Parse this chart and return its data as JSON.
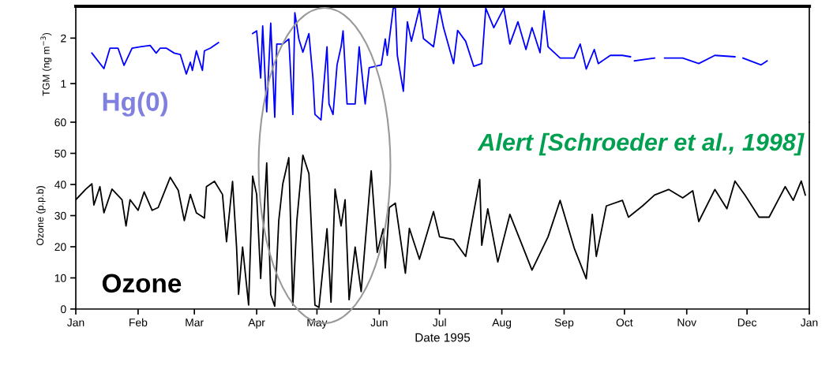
{
  "chart_data": [
    {
      "type": "line",
      "ylabel": "TGM (ng m$^{−3}$)",
      "xlim": [
        "1995-01-01",
        "1996-01-01"
      ],
      "ylim": [
        0.15,
        2.7
      ],
      "yticks": [
        1,
        2
      ],
      "tick_labels": "y",
      "series": [
        {
          "name": "Hg(0)",
          "color": "#0000ff",
          "x": [
            "1995-01-09",
            "1995-01-15",
            "1995-01-18",
            "1995-01-22",
            "1995-01-25",
            "1995-01-29",
            "1995-02-02",
            "1995-02-07",
            "1995-02-10",
            "1995-02-12",
            "1995-02-15",
            "1995-02-19",
            "1995-02-22",
            "1995-02-25",
            "1995-02-27",
            "1995-02-28",
            "1995-03-02",
            "1995-03-05",
            "1995-03-06",
            "1995-03-09",
            "1995-03-13",
            "1995-03-22",
            "1995-03-30",
            "1995-04-01",
            "1995-04-03",
            "1995-04-04",
            "1995-04-06",
            "1995-04-08",
            "1995-04-10",
            "1995-04-11",
            "1995-04-14",
            "1995-04-17",
            "1995-04-19",
            "1995-04-20",
            "1995-04-22",
            "1995-04-24",
            "1995-04-27",
            "1995-04-29",
            "1995-04-30",
            "1995-05-03",
            "1995-05-06",
            "1995-05-07",
            "1995-05-09",
            "1995-05-11",
            "1995-05-13",
            "1995-05-14",
            "1995-05-16",
            "1995-05-20",
            "1995-05-22",
            "1995-05-25",
            "1995-05-27",
            "1995-06-02",
            "1995-06-04",
            "1995-06-05",
            "1995-06-08",
            "1995-06-09",
            "1995-06-10",
            "1995-06-13",
            "1995-06-15",
            "1995-06-17",
            "1995-06-21",
            "1995-06-23",
            "1995-06-28",
            "1995-07-01",
            "1995-07-03",
            "1995-07-08",
            "1995-07-10",
            "1995-07-14",
            "1995-07-18",
            "1995-07-22",
            "1995-07-24",
            "1995-07-28",
            "1995-08-02",
            "1995-08-05",
            "1995-08-09",
            "1995-08-13",
            "1995-08-16",
            "1995-08-20",
            "1995-08-22",
            "1995-08-24",
            "1995-08-30",
            "1995-09-06",
            "1995-09-09",
            "1995-09-12",
            "1995-09-16",
            "1995-09-18",
            "1995-09-24",
            "1995-09-30",
            "1995-10-04",
            "1995-10-05",
            "1995-10-06",
            "1995-10-16",
            "1995-10-18",
            "1995-10-21",
            "1995-10-30",
            "1995-11-07",
            "1995-11-15",
            "1995-11-25",
            "1995-11-27",
            "1995-11-29",
            "1995-12-08",
            "1995-12-11"
          ],
          "values": [
            1.67,
            1.33,
            1.78,
            1.78,
            1.4,
            1.78,
            1.81,
            1.84,
            1.67,
            1.78,
            1.78,
            1.67,
            1.64,
            1.21,
            1.47,
            1.29,
            1.72,
            1.29,
            1.72,
            1.78,
            1.9,
            null,
            2.1,
            2.16,
            1.12,
            2.27,
            0.38,
            2.33,
            0.26,
            1.87,
            1.87,
            1.98,
            0.32,
            2.56,
            1.98,
            1.69,
            2.1,
            1.12,
            0.32,
            0.2,
            1.81,
            0.55,
            0.32,
            1.41,
            1.81,
            2.16,
            0.55,
            0.55,
            1.81,
            0.55,
            1.35,
            1.41,
            1.98,
            1.62,
            2.67,
            2.66,
            1.62,
            0.83,
            2.36,
            1.93,
            2.66,
            1.99,
            1.81,
            2.66,
            2.23,
            1.44,
            2.17,
            1.93,
            1.38,
            1.44,
            2.66,
            2.23,
            2.66,
            1.87,
            2.36,
            1.75,
            2.23,
            1.68,
            2.6,
            1.81,
            1.56,
            1.56,
            1.87,
            1.32,
            1.75,
            1.44,
            1.62,
            1.62,
            1.59,
            null,
            1.5,
            1.56,
            null,
            1.56,
            1.56,
            1.44,
            1.62,
            1.59,
            null,
            1.56,
            1.41,
            1.5
          ]
        }
      ]
    },
    {
      "type": "line",
      "xlabel": "Date 1995",
      "ylabel": "Ozone (p.p.b)",
      "xlim": [
        "1995-01-01",
        "1996-01-01"
      ],
      "ylim": [
        0,
        60
      ],
      "yticks": [
        0,
        10,
        20,
        30,
        40,
        50,
        60
      ],
      "xticks": [
        {
          "value": "1995-01-01",
          "label": "Jan"
        },
        {
          "value": "1995-02-01",
          "label": "Feb"
        },
        {
          "value": "1995-03-01",
          "label": "Mar"
        },
        {
          "value": "1995-04-01",
          "label": "Apr"
        },
        {
          "value": "1995-05-01",
          "label": "May"
        },
        {
          "value": "1995-06-01",
          "label": "Jun"
        },
        {
          "value": "1995-07-01",
          "label": "Jul"
        },
        {
          "value": "1995-08-01",
          "label": "Aug"
        },
        {
          "value": "1995-09-01",
          "label": "Sep"
        },
        {
          "value": "1995-10-01",
          "label": "Oct"
        },
        {
          "value": "1995-11-01",
          "label": "Nov"
        },
        {
          "value": "1995-12-01",
          "label": "Dec"
        },
        {
          "value": "1996-01-01",
          "label": "Jan"
        }
      ],
      "annotations": [
        "Alert [Schroeder et al., 1998]"
      ],
      "series": [
        {
          "name": "Ozone",
          "color": "#000000",
          "x": [
            "1995-01-01",
            "1995-01-06",
            "1995-01-09",
            "1995-01-10",
            "1995-01-13",
            "1995-01-15",
            "1995-01-19",
            "1995-01-24",
            "1995-01-26",
            "1995-01-28",
            "1995-02-01",
            "1995-02-04",
            "1995-02-08",
            "1995-02-11",
            "1995-02-17",
            "1995-02-21",
            "1995-02-24",
            "1995-02-27",
            "1995-03-02",
            "1995-03-06",
            "1995-03-07",
            "1995-03-11",
            "1995-03-15",
            "1995-03-17",
            "1995-03-20",
            "1995-03-22",
            "1995-03-23",
            "1995-03-25",
            "1995-03-28",
            "1995-03-30",
            "1995-04-01",
            "1995-04-03",
            "1995-04-06",
            "1995-04-08",
            "1995-04-10",
            "1995-04-12",
            "1995-04-14",
            "1995-04-17",
            "1995-04-19",
            "1995-04-21",
            "1995-04-24",
            "1995-04-27",
            "1995-04-30",
            "1995-05-02",
            "1995-05-06",
            "1995-05-08",
            "1995-05-10",
            "1995-05-13",
            "1995-05-15",
            "1995-05-17",
            "1995-05-20",
            "1995-05-23",
            "1995-05-28",
            "1995-05-31",
            "1995-06-03",
            "1995-06-04",
            "1995-06-06",
            "1995-06-09",
            "1995-06-14",
            "1995-06-16",
            "1995-06-21",
            "1995-06-28",
            "1995-07-01",
            "1995-07-08",
            "1995-07-14",
            "1995-07-21",
            "1995-07-22",
            "1995-07-25",
            "1995-07-30",
            "1995-08-05",
            "1995-08-10",
            "1995-08-16",
            "1995-08-24",
            "1995-08-30",
            "1995-09-06",
            "1995-09-12",
            "1995-09-15",
            "1995-09-17",
            "1995-09-22",
            "1995-09-30",
            "1995-10-03",
            "1995-10-10",
            "1995-10-16",
            "1995-10-23",
            "1995-10-30",
            "1995-11-04",
            "1995-11-07",
            "1995-11-15",
            "1995-11-21",
            "1995-11-25",
            "1995-11-30",
            "1995-12-07",
            "1995-12-12",
            "1995-12-20",
            "1995-12-24",
            "1995-12-28",
            "1995-12-30"
          ],
          "values": [
            35.1,
            38.5,
            40.2,
            33.4,
            39.3,
            30.9,
            38.5,
            35.1,
            26.7,
            35.1,
            31.7,
            37.6,
            31.7,
            32.6,
            42.3,
            38.1,
            28.4,
            36.8,
            30.9,
            29.2,
            39.3,
            41.0,
            36.8,
            21.6,
            41.0,
            19.9,
            4.7,
            19.9,
            1.3,
            42.7,
            36.8,
            9.8,
            46.9,
            4.7,
            0.9,
            28.4,
            40.2,
            48.6,
            1.3,
            28.4,
            49.4,
            43.5,
            1.3,
            0.5,
            25.8,
            2.2,
            38.5,
            26.7,
            35.1,
            3.0,
            19.9,
            5.6,
            44.4,
            18.2,
            25.8,
            13.2,
            32.6,
            34.0,
            11.5,
            25.9,
            16.0,
            31.3,
            23.2,
            22.3,
            16.9,
            41.6,
            20.5,
            32.2,
            15.1,
            30.4,
            22.3,
            12.5,
            23.2,
            34.9,
            19.6,
            9.7,
            30.4,
            16.9,
            33.1,
            34.9,
            29.5,
            33.1,
            36.6,
            38.4,
            35.7,
            38.0,
            28.1,
            38.4,
            32.2,
            41.1,
            36.6,
            29.5,
            29.5,
            39.3,
            34.9,
            41.1,
            36.6
          ]
        }
      ]
    }
  ]
}
